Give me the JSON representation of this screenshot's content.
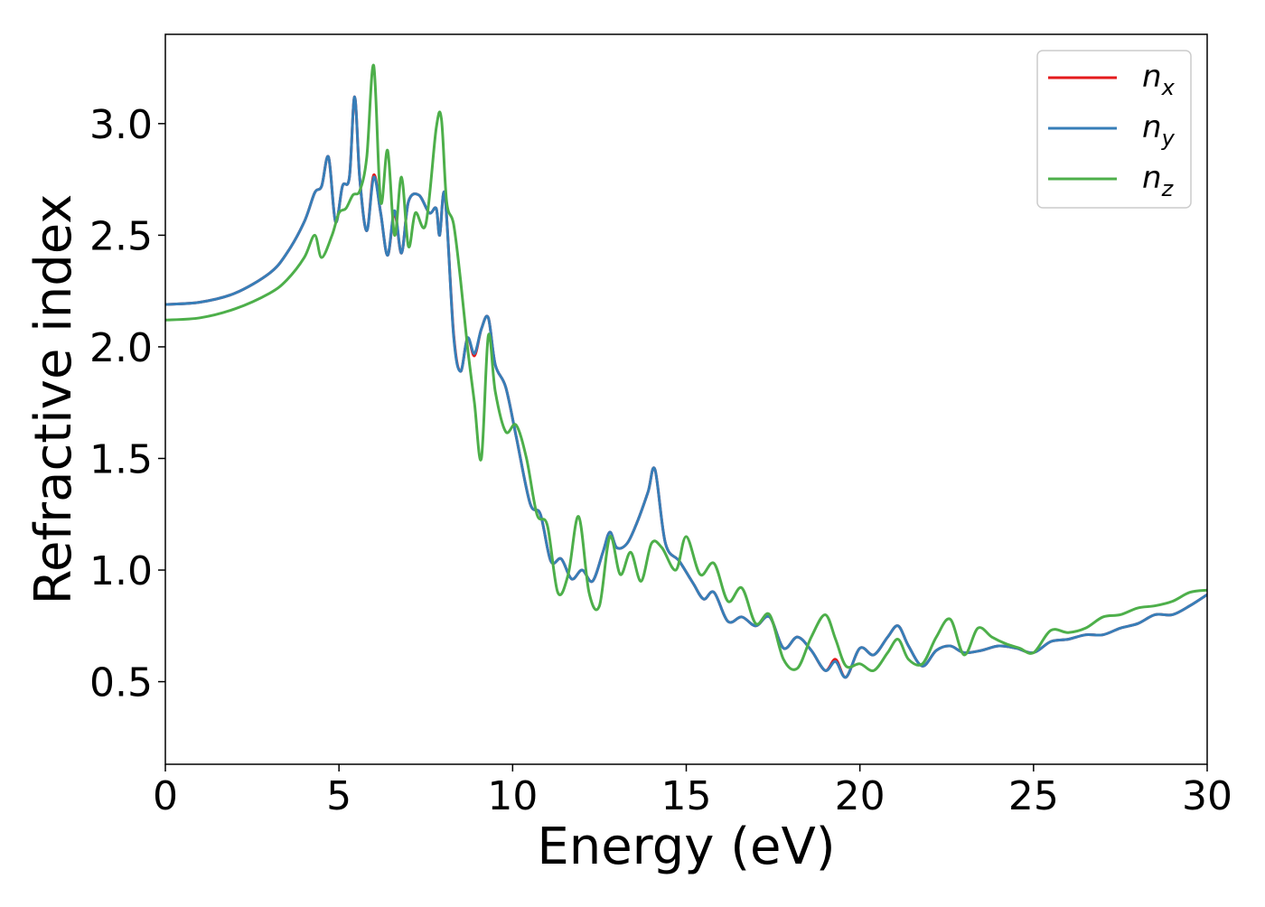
{
  "chart_data": {
    "type": "line",
    "title": "",
    "xlabel": "Energy (eV)",
    "ylabel": "Refractive index",
    "xlim": [
      0,
      30
    ],
    "ylim": [
      0.13,
      3.4
    ],
    "xticks": [
      0,
      5,
      10,
      15,
      20,
      25,
      30
    ],
    "yticks": [
      0.5,
      1.0,
      1.5,
      2.0,
      2.5,
      3.0
    ],
    "xtick_labels": [
      "0",
      "5",
      "10",
      "15",
      "20",
      "25",
      "30"
    ],
    "ytick_labels": [
      "0.5",
      "1.0",
      "1.5",
      "2.0",
      "2.5",
      "3.0"
    ],
    "grid": false,
    "legend_position": "top-right",
    "series": [
      {
        "name": "n_x",
        "legend_base": "n",
        "legend_sub": "x",
        "color": "#e41a1c",
        "x": [
          0,
          1,
          2,
          3,
          3.5,
          4,
          4.3,
          4.5,
          4.7,
          4.9,
          5.1,
          5.3,
          5.45,
          5.6,
          5.8,
          6.0,
          6.2,
          6.4,
          6.6,
          6.8,
          7.0,
          7.3,
          7.6,
          7.8,
          7.9,
          8.05,
          8.3,
          8.5,
          8.7,
          8.9,
          9.1,
          9.3,
          9.5,
          9.8,
          10.1,
          10.5,
          10.8,
          11.1,
          11.4,
          11.7,
          12.0,
          12.3,
          12.6,
          12.8,
          13.0,
          13.3,
          13.6,
          13.9,
          14.1,
          14.4,
          14.8,
          15.2,
          15.5,
          15.8,
          16.2,
          16.6,
          17.0,
          17.4,
          17.8,
          18.2,
          18.6,
          19.0,
          19.3,
          19.6,
          20.0,
          20.4,
          20.8,
          21.1,
          21.4,
          21.8,
          22.2,
          22.6,
          23.0,
          23.5,
          24.0,
          24.5,
          25.0,
          25.5,
          26.0,
          26.5,
          27.0,
          27.5,
          28.0,
          28.5,
          29.0,
          29.5,
          30.0
        ],
        "y": [
          2.19,
          2.2,
          2.24,
          2.33,
          2.42,
          2.56,
          2.69,
          2.72,
          2.85,
          2.56,
          2.72,
          2.76,
          3.12,
          2.75,
          2.52,
          2.77,
          2.6,
          2.41,
          2.6,
          2.42,
          2.65,
          2.68,
          2.6,
          2.62,
          2.5,
          2.68,
          2.06,
          1.89,
          2.04,
          1.96,
          2.08,
          2.13,
          1.92,
          1.82,
          1.6,
          1.3,
          1.25,
          1.04,
          1.05,
          0.96,
          1.0,
          0.95,
          1.08,
          1.17,
          1.1,
          1.12,
          1.22,
          1.35,
          1.45,
          1.12,
          1.04,
          0.94,
          0.87,
          0.9,
          0.77,
          0.79,
          0.75,
          0.79,
          0.65,
          0.7,
          0.64,
          0.55,
          0.6,
          0.52,
          0.65,
          0.62,
          0.7,
          0.75,
          0.66,
          0.57,
          0.64,
          0.66,
          0.63,
          0.64,
          0.66,
          0.65,
          0.63,
          0.68,
          0.69,
          0.71,
          0.71,
          0.74,
          0.76,
          0.8,
          0.8,
          0.84,
          0.89
        ]
      },
      {
        "name": "n_y",
        "legend_base": "n",
        "legend_sub": "y",
        "color": "#377eb8",
        "x": [
          0,
          1,
          2,
          3,
          3.5,
          4,
          4.3,
          4.5,
          4.7,
          4.9,
          5.1,
          5.3,
          5.45,
          5.6,
          5.8,
          6.0,
          6.2,
          6.4,
          6.6,
          6.8,
          7.0,
          7.3,
          7.6,
          7.8,
          7.9,
          8.05,
          8.3,
          8.5,
          8.7,
          8.9,
          9.1,
          9.3,
          9.5,
          9.8,
          10.1,
          10.5,
          10.8,
          11.1,
          11.4,
          11.7,
          12.0,
          12.3,
          12.6,
          12.8,
          13.0,
          13.3,
          13.6,
          13.9,
          14.1,
          14.4,
          14.8,
          15.2,
          15.5,
          15.8,
          16.2,
          16.6,
          17.0,
          17.4,
          17.8,
          18.2,
          18.6,
          19.0,
          19.3,
          19.6,
          20.0,
          20.4,
          20.8,
          21.1,
          21.4,
          21.8,
          22.2,
          22.6,
          23.0,
          23.5,
          24.0,
          24.5,
          25.0,
          25.5,
          26.0,
          26.5,
          27.0,
          27.5,
          28.0,
          28.5,
          29.0,
          29.5,
          30.0
        ],
        "y": [
          2.19,
          2.2,
          2.24,
          2.33,
          2.42,
          2.56,
          2.69,
          2.72,
          2.85,
          2.56,
          2.72,
          2.76,
          3.12,
          2.75,
          2.52,
          2.76,
          2.6,
          2.41,
          2.61,
          2.42,
          2.65,
          2.68,
          2.6,
          2.62,
          2.5,
          2.68,
          2.05,
          1.89,
          2.04,
          1.97,
          2.08,
          2.13,
          1.92,
          1.82,
          1.6,
          1.3,
          1.25,
          1.04,
          1.05,
          0.96,
          1.0,
          0.95,
          1.08,
          1.17,
          1.1,
          1.12,
          1.22,
          1.35,
          1.45,
          1.12,
          1.04,
          0.94,
          0.87,
          0.9,
          0.77,
          0.79,
          0.75,
          0.79,
          0.65,
          0.7,
          0.64,
          0.55,
          0.59,
          0.52,
          0.65,
          0.62,
          0.7,
          0.75,
          0.66,
          0.57,
          0.64,
          0.66,
          0.63,
          0.64,
          0.66,
          0.65,
          0.63,
          0.68,
          0.69,
          0.71,
          0.71,
          0.74,
          0.76,
          0.8,
          0.8,
          0.84,
          0.89
        ]
      },
      {
        "name": "n_z",
        "legend_base": "n",
        "legend_sub": "z",
        "color": "#4daf4a",
        "x": [
          0,
          1,
          2,
          3,
          3.5,
          4,
          4.3,
          4.5,
          4.8,
          5.0,
          5.2,
          5.4,
          5.6,
          5.8,
          6.0,
          6.2,
          6.4,
          6.6,
          6.8,
          7.0,
          7.2,
          7.5,
          7.8,
          7.95,
          8.1,
          8.3,
          8.5,
          8.7,
          8.9,
          9.1,
          9.3,
          9.5,
          9.8,
          10.1,
          10.4,
          10.7,
          11.0,
          11.3,
          11.6,
          11.9,
          12.2,
          12.5,
          12.8,
          13.1,
          13.4,
          13.7,
          14.0,
          14.3,
          14.7,
          15.0,
          15.4,
          15.8,
          16.2,
          16.6,
          17.0,
          17.4,
          17.8,
          18.2,
          18.6,
          19.0,
          19.3,
          19.6,
          20.0,
          20.4,
          20.8,
          21.1,
          21.4,
          21.8,
          22.2,
          22.6,
          23.0,
          23.4,
          23.8,
          24.2,
          24.6,
          25.0,
          25.5,
          26.0,
          26.5,
          27.0,
          27.5,
          28.0,
          28.5,
          29.0,
          29.5,
          30.0
        ],
        "y": [
          2.12,
          2.13,
          2.17,
          2.24,
          2.3,
          2.4,
          2.5,
          2.4,
          2.5,
          2.6,
          2.62,
          2.68,
          2.7,
          2.85,
          3.26,
          2.65,
          2.88,
          2.5,
          2.76,
          2.45,
          2.6,
          2.55,
          2.98,
          3.02,
          2.65,
          2.55,
          2.3,
          2.0,
          1.75,
          1.5,
          2.05,
          1.8,
          1.62,
          1.65,
          1.5,
          1.25,
          1.2,
          0.9,
          0.98,
          1.24,
          0.9,
          0.84,
          1.15,
          0.98,
          1.08,
          0.95,
          1.12,
          1.1,
          1.0,
          1.15,
          0.98,
          1.03,
          0.86,
          0.92,
          0.76,
          0.8,
          0.6,
          0.56,
          0.7,
          0.8,
          0.69,
          0.57,
          0.58,
          0.55,
          0.63,
          0.69,
          0.6,
          0.58,
          0.7,
          0.78,
          0.62,
          0.74,
          0.7,
          0.67,
          0.65,
          0.63,
          0.73,
          0.72,
          0.74,
          0.79,
          0.8,
          0.83,
          0.84,
          0.86,
          0.9,
          0.91
        ]
      }
    ]
  }
}
